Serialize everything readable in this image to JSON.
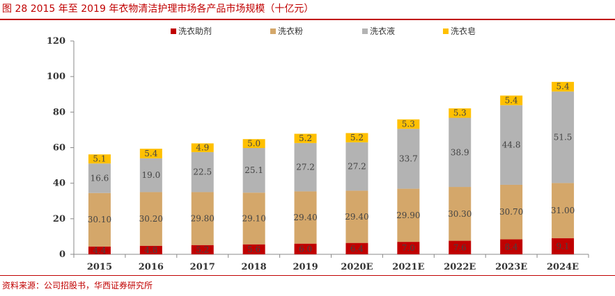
{
  "caption": "图 28   2015 年至 2019 年衣物清洁护理市场各产品市场规模（十亿元）",
  "source": "资料来源：公司招股书，华西证券研究所",
  "chart_data": {
    "type": "bar",
    "stacked": true,
    "categories": [
      "2015",
      "2016",
      "2017",
      "2018",
      "2019",
      "2020E",
      "2021E",
      "2022E",
      "2023E",
      "2024E"
    ],
    "ylim": [
      0,
      120
    ],
    "yticks": [
      0,
      20,
      40,
      60,
      80,
      100,
      120
    ],
    "grid": false,
    "legend_position": "top",
    "series": [
      {
        "name": "洗衣助剂",
        "color": "#c00000",
        "values": [
          4.4,
          4.8,
          5.2,
          5.6,
          6.0,
          6.4,
          7.0,
          7.6,
          8.4,
          9.1
        ],
        "labels": [
          "4.4",
          "4.8",
          "5.2",
          "5.6",
          "6.0",
          "6.4",
          "7.0",
          "7.6",
          "8.4",
          "9.1"
        ]
      },
      {
        "name": "洗衣粉",
        "color": "#d4a76a",
        "values": [
          30.1,
          30.2,
          29.8,
          29.1,
          29.4,
          29.4,
          29.9,
          30.3,
          30.7,
          31.0
        ],
        "labels": [
          "30.10",
          "30.20",
          "29.80",
          "29.10",
          "29.40",
          "29.40",
          "29.90",
          "30.30",
          "30.70",
          "31.00"
        ]
      },
      {
        "name": "洗衣液",
        "color": "#b3b3b3",
        "values": [
          16.6,
          19.0,
          22.5,
          25.1,
          27.2,
          27.2,
          33.7,
          38.9,
          44.8,
          51.5
        ],
        "labels": [
          "16.6",
          "19.0",
          "22.5",
          "25.1",
          "27.2",
          "27.2",
          "33.7",
          "38.9",
          "44.8",
          "51.5"
        ]
      },
      {
        "name": "洗衣皂",
        "color": "#ffc000",
        "values": [
          5.1,
          5.4,
          4.9,
          5.0,
          5.2,
          5.2,
          5.3,
          5.3,
          5.4,
          5.4
        ],
        "labels": [
          "5.1",
          "5.4",
          "4.9",
          "5.0",
          "5.2",
          "5.2",
          "5.3",
          "5.3",
          "5.4",
          "5.4"
        ]
      }
    ]
  }
}
